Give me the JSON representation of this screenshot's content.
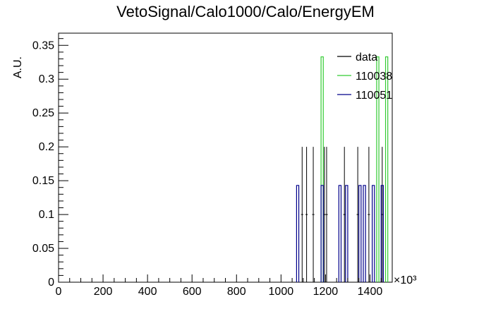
{
  "chart_data": {
    "type": "histogram",
    "title": "VetoSignal/Calo1000/Calo/EnergyEM",
    "ylabel": "A.U.",
    "xlabel": "",
    "x_multiplier": "×10³",
    "xlim": [
      0,
      1500
    ],
    "ylim": [
      0,
      0.368
    ],
    "x_ticks": [
      0,
      200,
      400,
      600,
      800,
      1000,
      1200,
      1400
    ],
    "x_tick_labels": [
      "0",
      "200",
      "400",
      "600",
      "800",
      "1000",
      "1200",
      "1400"
    ],
    "y_ticks": [
      0,
      0.05,
      0.1,
      0.15,
      0.2,
      0.25,
      0.3,
      0.35
    ],
    "y_tick_labels": [
      "0",
      "0.05",
      "0.1",
      "0.15",
      "0.2",
      "0.25",
      "0.3",
      "0.35"
    ],
    "grid": false,
    "legend_position": "top-right",
    "bin_width": 10,
    "series": [
      {
        "name": "data",
        "color": "#000000",
        "style": "points-with-errors",
        "points": [
          {
            "x": 1095,
            "y": 0.1,
            "err": 0.1
          },
          {
            "x": 1115,
            "y": 0.1,
            "err": 0.1
          },
          {
            "x": 1145,
            "y": 0.1,
            "err": 0.1
          },
          {
            "x": 1195,
            "y": 0.1,
            "err": 0.1
          },
          {
            "x": 1205,
            "y": 0.1,
            "err": 0.1
          },
          {
            "x": 1285,
            "y": 0.1,
            "err": 0.1
          },
          {
            "x": 1345,
            "y": 0.1,
            "err": 0.1
          },
          {
            "x": 1395,
            "y": 0.1,
            "err": 0.1
          },
          {
            "x": 1455,
            "y": 0.1,
            "err": 0.1
          }
        ]
      },
      {
        "name": "110038",
        "color": "#33cc33",
        "style": "step",
        "bins": [
          {
            "x0": 1180,
            "x1": 1190,
            "y": 0.333
          },
          {
            "x0": 1430,
            "x1": 1440,
            "y": 0.333
          },
          {
            "x0": 1470,
            "x1": 1480,
            "y": 0.333
          }
        ]
      },
      {
        "name": "110051",
        "color": "#00008b",
        "style": "step",
        "bins": [
          {
            "x0": 1070,
            "x1": 1080,
            "y": 0.143
          },
          {
            "x0": 1180,
            "x1": 1190,
            "y": 0.143
          },
          {
            "x0": 1260,
            "x1": 1270,
            "y": 0.143
          },
          {
            "x0": 1290,
            "x1": 1300,
            "y": 0.143
          },
          {
            "x0": 1350,
            "x1": 1360,
            "y": 0.143
          },
          {
            "x0": 1370,
            "x1": 1380,
            "y": 0.143
          },
          {
            "x0": 1410,
            "x1": 1420,
            "y": 0.143
          },
          {
            "x0": 1450,
            "x1": 1460,
            "y": 0.143
          }
        ]
      }
    ]
  }
}
